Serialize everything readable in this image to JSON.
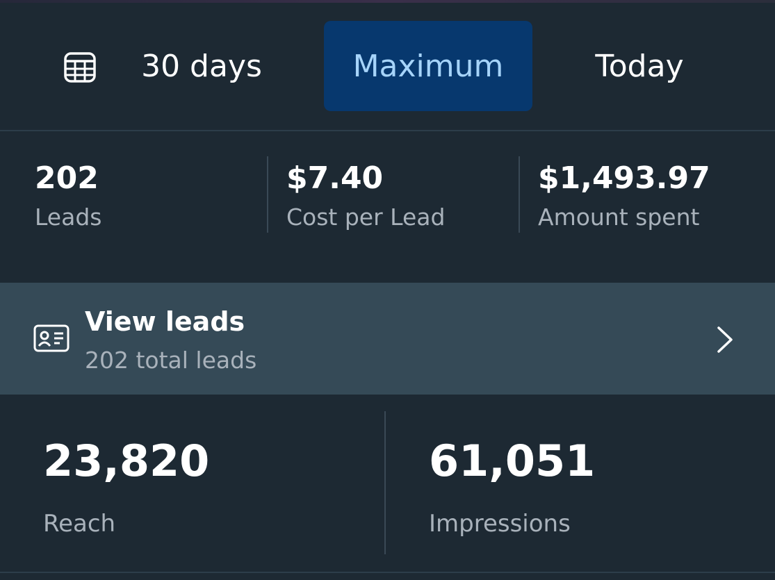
{
  "date_range": {
    "calendar_icon": "calendar-icon",
    "tabs": [
      {
        "label": "30 days",
        "selected": false
      },
      {
        "label": "Maximum",
        "selected": true
      },
      {
        "label": "Today",
        "selected": false
      }
    ]
  },
  "summary": [
    {
      "value": "202",
      "label": "Leads"
    },
    {
      "value": "$7.40",
      "label": "Cost per Lead"
    },
    {
      "value": "$1,493.97",
      "label": "Amount spent"
    }
  ],
  "view_leads": {
    "icon": "contact-card-icon",
    "title": "View leads",
    "subtitle": "202 total leads",
    "chevron_icon": "chevron-right-icon"
  },
  "stats": [
    {
      "value": "23,820",
      "label": "Reach"
    },
    {
      "value": "61,051",
      "label": "Impressions"
    }
  ],
  "colors": {
    "background": "#1d2933",
    "selected_tab_bg": "#07386e",
    "selected_tab_text": "#a6d4fa",
    "row_highlight": "#354a57",
    "secondary_text": "#a9b2bb"
  }
}
